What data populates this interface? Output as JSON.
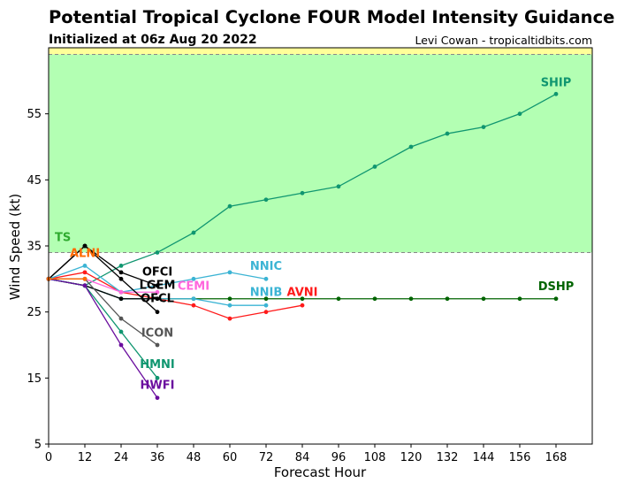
{
  "header": {
    "title": "Potential Tropical Cyclone FOUR Model Intensity Guidance",
    "subtitle": "Initialized at 06z Aug 20 2022",
    "credit": "Levi Cowan - tropicaltidbits.com"
  },
  "chart_data": {
    "type": "line",
    "title": "Potential Tropical Cyclone FOUR Model Intensity Guidance",
    "subtitle": "Initialized at 06z Aug 20 2022",
    "xlabel": "Forecast Hour",
    "ylabel": "Wind Speed (kt)",
    "xlim": [
      0,
      180
    ],
    "ylim": [
      5,
      65
    ],
    "xticks": [
      0,
      12,
      24,
      36,
      48,
      60,
      72,
      84,
      96,
      108,
      120,
      132,
      144,
      156,
      168
    ],
    "yticks": [
      5,
      15,
      25,
      35,
      45,
      55
    ],
    "bands": [
      {
        "label": "TS",
        "from": 34,
        "to": 64,
        "color": "#b3ffb3",
        "label_color": "#2eaa2e"
      },
      {
        "label": "",
        "from": 64,
        "to": 65,
        "color": "#ffff99",
        "label_color": ""
      }
    ],
    "band_lines": [
      34,
      64
    ],
    "series": [
      {
        "name": "SHIP",
        "color": "#109670",
        "x": [
          0,
          12,
          24,
          36,
          48,
          60,
          72,
          84,
          96,
          108,
          120,
          132,
          144,
          156,
          168
        ],
        "y": [
          30,
          29,
          32,
          34,
          37,
          41,
          42,
          43,
          44,
          47,
          50,
          52,
          53,
          55,
          58
        ]
      },
      {
        "name": "DSHP",
        "color": "#006400",
        "x": [
          0,
          12,
          24,
          36,
          48,
          60,
          72,
          84,
          96,
          108,
          120,
          132,
          144,
          156,
          168
        ],
        "y": [
          30,
          29,
          27,
          27,
          27,
          27,
          27,
          27,
          27,
          27,
          27,
          27,
          27,
          27,
          27
        ]
      },
      {
        "name": "AVNI",
        "color": "#ff1a1a",
        "x": [
          0,
          12,
          24,
          36,
          48,
          60,
          72,
          84
        ],
        "y": [
          30,
          31,
          28,
          27,
          26,
          24,
          25,
          26
        ]
      },
      {
        "name": "NNIC",
        "color": "#3cb4d4",
        "x": [
          0,
          12,
          24,
          36,
          48,
          60,
          72
        ],
        "y": [
          30,
          32,
          28,
          29,
          30,
          31,
          30
        ]
      },
      {
        "name": "NNIB",
        "color": "#3cb4d4",
        "x": [
          0,
          12,
          24,
          36,
          48,
          60,
          72
        ],
        "y": [
          30,
          29,
          27,
          27,
          27,
          26,
          26
        ]
      },
      {
        "name": "CEMI",
        "color": "#ff66dd",
        "x": [
          0,
          12,
          24,
          36
        ],
        "y": [
          30,
          30,
          28,
          28
        ]
      },
      {
        "name": "OFCI",
        "color": "#000000",
        "x": [
          0,
          12,
          24,
          36
        ],
        "y": [
          30,
          35,
          30,
          25
        ]
      },
      {
        "name": "OFCL",
        "color": "#000000",
        "x": [
          0,
          12,
          24,
          36
        ],
        "y": [
          30,
          35,
          31,
          29
        ]
      },
      {
        "name": "LGEM",
        "color": "#000000",
        "x": [
          0,
          12,
          24,
          36
        ],
        "y": [
          30,
          29,
          27,
          27
        ]
      },
      {
        "name": "ICON",
        "color": "#555555",
        "x": [
          0,
          12,
          24,
          36
        ],
        "y": [
          30,
          30,
          24,
          20
        ]
      },
      {
        "name": "HMNI",
        "color": "#109670",
        "x": [
          0,
          12,
          24,
          36
        ],
        "y": [
          30,
          29,
          22,
          15
        ]
      },
      {
        "name": "HWFI",
        "color": "#6a0d9e",
        "x": [
          0,
          12,
          24,
          36
        ],
        "y": [
          30,
          29,
          20,
          12
        ]
      },
      {
        "name": "ALNI",
        "color": "#ff6a00",
        "x": [
          0,
          12
        ],
        "y": [
          30,
          30
        ]
      }
    ],
    "series_labels": [
      {
        "name": "SHIP",
        "x": 168,
        "y": 59.2,
        "color": "#109670"
      },
      {
        "name": "DSHP",
        "x": 168,
        "y": 28.3,
        "color": "#006400"
      },
      {
        "name": "AVNI",
        "x": 84,
        "y": 27.4,
        "color": "#ff1a1a"
      },
      {
        "name": "NNIC",
        "x": 72,
        "y": 31.4,
        "color": "#3cb4d4"
      },
      {
        "name": "NNIB",
        "x": 72,
        "y": 27.4,
        "color": "#3cb4d4"
      },
      {
        "name": "CEMI",
        "x": 48,
        "y": 28.4,
        "color": "#ff66dd"
      },
      {
        "name": "OFCI",
        "x": 36,
        "y": 30.5,
        "color": "#000000"
      },
      {
        "name": "LGEM",
        "x": 36,
        "y": 28.5,
        "color": "#000000"
      },
      {
        "name": "OFCL",
        "x": 36,
        "y": 26.5,
        "color": "#000000"
      },
      {
        "name": "ICON",
        "x": 36,
        "y": 21.3,
        "color": "#555555"
      },
      {
        "name": "HMNI",
        "x": 36,
        "y": 16.5,
        "color": "#109670"
      },
      {
        "name": "HWFI",
        "x": 36,
        "y": 13.4,
        "color": "#6a0d9e"
      },
      {
        "name": "ALNI",
        "x": 12,
        "y": 33.3,
        "color": "#ff6a00"
      }
    ]
  }
}
